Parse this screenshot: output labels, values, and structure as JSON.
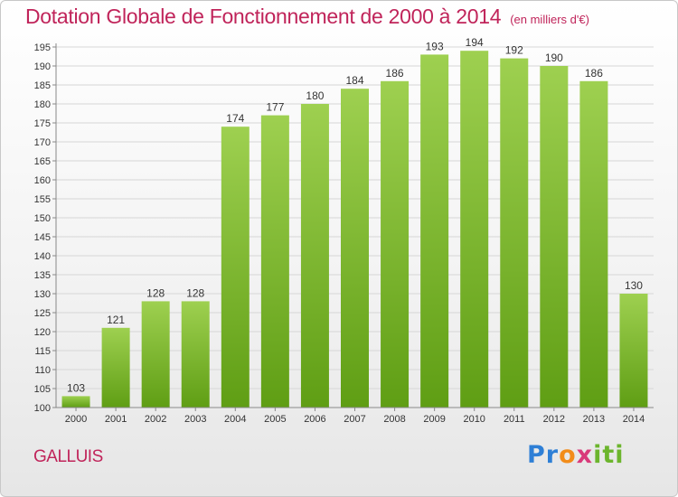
{
  "header": {
    "title": "Dotation Globale de Fonctionnement de 2000 à 2014",
    "unit": "(en milliers d'€)"
  },
  "footer": {
    "commune": "GALLUIS",
    "logo_text": "Proxiti"
  },
  "colors": {
    "accent": "#c0245a",
    "bar_top": "#9ed050",
    "bar_bottom": "#5f9e14"
  },
  "chart_data": {
    "type": "bar",
    "title": "Dotation Globale de Fonctionnement de 2000 à 2014",
    "subtitle": "(en milliers d'€)",
    "categories": [
      "2000",
      "2001",
      "2002",
      "2003",
      "2004",
      "2005",
      "2006",
      "2007",
      "2008",
      "2009",
      "2010",
      "2011",
      "2012",
      "2013",
      "2014"
    ],
    "values": [
      103,
      121,
      128,
      128,
      174,
      177,
      180,
      184,
      186,
      193,
      194,
      192,
      190,
      186,
      130
    ],
    "ylim": [
      100,
      195
    ],
    "yticks": [
      100,
      105,
      110,
      115,
      120,
      125,
      130,
      135,
      140,
      145,
      150,
      155,
      160,
      165,
      170,
      175,
      180,
      185,
      190,
      195
    ],
    "grid": true,
    "xlabel": "",
    "ylabel": ""
  }
}
